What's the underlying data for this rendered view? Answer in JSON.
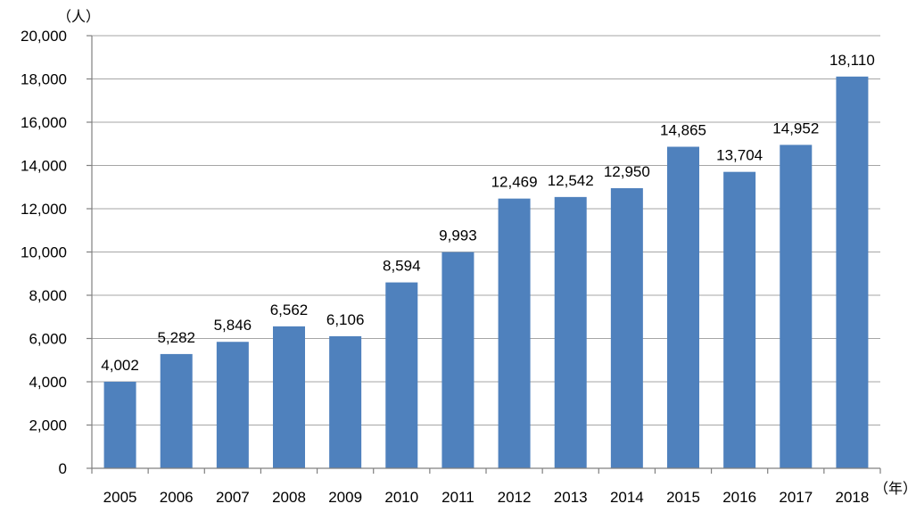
{
  "chart_data": {
    "type": "bar",
    "categories": [
      "2005",
      "2006",
      "2007",
      "2008",
      "2009",
      "2010",
      "2011",
      "2012",
      "2013",
      "2014",
      "2015",
      "2016",
      "2017",
      "2018"
    ],
    "values": [
      4002,
      5282,
      5846,
      6562,
      6106,
      8594,
      9993,
      12469,
      12542,
      12950,
      14865,
      13704,
      14952,
      18110
    ],
    "data_labels": [
      "4,002",
      "5,282",
      "5,846",
      "6,562",
      "6,106",
      "8,594",
      "9,993",
      "12,469",
      "12,542",
      "12,950",
      "14,865",
      "13,704",
      "14,952",
      "18,110"
    ],
    "y_ticks": [
      "0",
      "2,000",
      "4,000",
      "6,000",
      "8,000",
      "10,000",
      "12,000",
      "14,000",
      "16,000",
      "18,000",
      "20,000"
    ],
    "ylim": [
      0,
      20000
    ],
    "y_unit": "（人）",
    "x_unit": "（年）",
    "title": "",
    "grid": true,
    "legend": "none",
    "bar_color": "#4f81bd"
  }
}
